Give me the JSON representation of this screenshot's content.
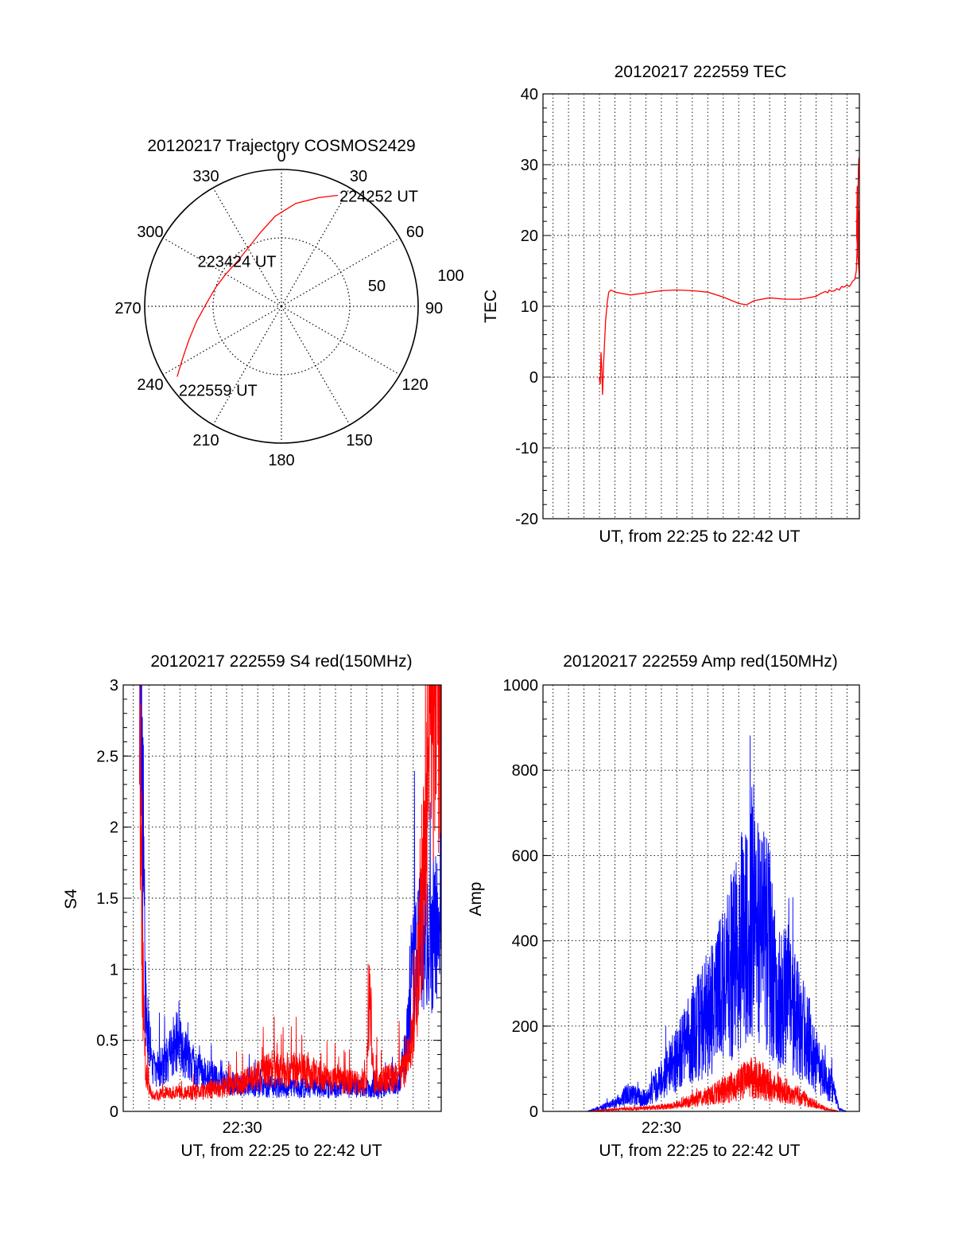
{
  "chart_data": [
    {
      "id": "trajectory",
      "type": "polar",
      "title": "20120217 Trajectory COSMOS2429",
      "azimuth_labels": [
        "0",
        "30",
        "60",
        "90",
        "120",
        "150",
        "180",
        "210",
        "240",
        "270",
        "300",
        "330"
      ],
      "radial_labels": [
        "50",
        "100"
      ],
      "radial_max": 100,
      "series": [
        {
          "color": "#ff0000",
          "points": [
            {
              "az": 236,
              "zen": 92
            },
            {
              "az": 242,
              "zen": 82
            },
            {
              "az": 250,
              "zen": 72
            },
            {
              "az": 260,
              "zen": 63
            },
            {
              "az": 272,
              "zen": 55
            },
            {
              "az": 286,
              "zen": 50
            },
            {
              "az": 300,
              "zen": 47
            },
            {
              "az": 315,
              "zen": 46
            },
            {
              "az": 330,
              "zen": 49
            },
            {
              "az": 344,
              "zen": 56
            },
            {
              "az": 356,
              "zen": 66
            },
            {
              "az": 8,
              "zen": 76
            },
            {
              "az": 19,
              "zen": 84
            },
            {
              "az": 27,
              "zen": 91
            }
          ]
        }
      ],
      "annotations": [
        {
          "text": "224252 UT",
          "az": 27,
          "zen": 91
        },
        {
          "text": "223424 UT",
          "az": 309,
          "zen": 40
        },
        {
          "text": "222559 UT",
          "az": 236,
          "zen": 92
        }
      ]
    },
    {
      "id": "tec",
      "type": "line",
      "title": "20120217 222559 TEC",
      "xlabel": "UT, from 22:25 to 22:42 UT",
      "ylabel": "TEC",
      "xlim": [
        22.35,
        42.8
      ],
      "ylim": [
        -20,
        40
      ],
      "yticks": [
        -20,
        -10,
        0,
        10,
        20,
        30,
        40
      ],
      "grid": true,
      "series": [
        {
          "color": "#ff0000",
          "x": [
            25.98,
            26.05,
            26.1,
            26.15,
            26.2,
            26.27,
            26.33,
            26.4,
            26.5,
            26.6,
            26.75,
            26.9,
            27.0,
            27.5,
            28.0,
            29.0,
            30.0,
            31.0,
            32.0,
            33.0,
            34.0,
            35.0,
            35.5,
            36.0,
            37.0,
            38.0,
            39.0,
            40.0,
            40.3,
            40.6,
            40.75,
            40.85,
            41.0,
            41.2,
            41.35,
            41.5,
            41.65,
            41.8,
            42.0,
            42.15,
            42.25,
            42.35,
            42.5,
            42.6,
            42.75,
            42.8
          ],
          "y": [
            0,
            -1,
            3.5,
            1,
            -2.5,
            2,
            5,
            8,
            10.5,
            12,
            12.3,
            12.1,
            12.0,
            11.8,
            11.6,
            11.9,
            12.2,
            12.3,
            12.2,
            12.0,
            11.3,
            10.4,
            10.2,
            10.8,
            11.2,
            11.0,
            11.0,
            11.4,
            11.8,
            12.1,
            11.9,
            12.3,
            12.1,
            12.2,
            12.5,
            12.3,
            12.8,
            12.7,
            13.0,
            12.8,
            13.1,
            13.5,
            13.8,
            15,
            23.5,
            14
          ]
        }
      ]
    },
    {
      "id": "s4",
      "type": "line",
      "title": "20120217 222559 S4 red(150MHz)",
      "xlabel": "UT, from 22:25 to 22:42 UT",
      "ylabel": "S4",
      "xlim": [
        22.35,
        42.8
      ],
      "ylim": [
        0,
        3
      ],
      "yticks": [
        "0",
        "0.5",
        "1",
        "1.5",
        "2",
        "2.5",
        "3"
      ],
      "xtick_labels": [
        "22:30"
      ],
      "grid": true,
      "series": [
        {
          "color": "#ff0000",
          "x": [
            23.4,
            23.6,
            23.8,
            24.2,
            25,
            27,
            30,
            32,
            34,
            36,
            38,
            38.2,
            38.5,
            40,
            40.5,
            41,
            41.5,
            41.9,
            42.2,
            42.6,
            42.8
          ],
          "y": [
            3,
            0.9,
            0.3,
            0.1,
            0.12,
            0.13,
            0.2,
            0.3,
            0.28,
            0.22,
            0.2,
            0.8,
            0.2,
            0.25,
            0.3,
            0.6,
            1.2,
            2.2,
            3,
            3,
            3
          ]
        },
        {
          "color": "#0000ff",
          "x": [
            23.4,
            23.6,
            23.8,
            24,
            24.3,
            25,
            25.7,
            27,
            29,
            31,
            33,
            35,
            37,
            39,
            40,
            40.5,
            41,
            41.5,
            42,
            42.4,
            42.8
          ],
          "y": [
            3,
            2.0,
            0.7,
            0.5,
            0.3,
            0.32,
            0.5,
            0.3,
            0.2,
            0.18,
            0.16,
            0.17,
            0.17,
            0.15,
            0.2,
            0.4,
            1.0,
            1.3,
            1.2,
            1.3,
            1.05
          ]
        }
      ]
    },
    {
      "id": "amp",
      "type": "line",
      "title": "20120217 222559 Amp red(150MHz)",
      "xlabel": "UT, from 22:25 to 22:42 UT",
      "ylabel": "Amp",
      "xlim": [
        22.35,
        42.8
      ],
      "ylim": [
        0,
        1000
      ],
      "yticks": [
        "0",
        "200",
        "400",
        "600",
        "800",
        "1000"
      ],
      "xtick_labels": [
        "22:30"
      ],
      "grid": true,
      "series": [
        {
          "color": "#0000ff",
          "x": [
            25.2,
            26,
            27,
            27.8,
            29,
            30,
            31,
            32,
            33,
            34,
            34.8,
            35.5,
            36,
            36.6,
            37,
            37.5,
            38,
            38.5,
            39,
            39.5,
            40,
            40.5,
            41,
            41.5,
            42,
            42.8
          ],
          "y": [
            0,
            8,
            20,
            40,
            30,
            80,
            120,
            180,
            230,
            300,
            360,
            430,
            450,
            400,
            380,
            260,
            270,
            240,
            200,
            170,
            120,
            80,
            60,
            5,
            0,
            0
          ]
        },
        {
          "color": "#ff0000",
          "x": [
            25.2,
            27,
            29,
            30,
            31,
            32,
            33,
            34,
            34.8,
            35.5,
            36,
            36.6,
            37,
            37.5,
            38,
            38.5,
            39,
            39.5,
            40,
            40.5,
            41,
            41.5,
            42.8
          ],
          "y": [
            0,
            5,
            8,
            10,
            15,
            25,
            35,
            50,
            60,
            75,
            80,
            70,
            60,
            55,
            50,
            40,
            35,
            25,
            15,
            8,
            3,
            0,
            0
          ]
        }
      ]
    }
  ]
}
